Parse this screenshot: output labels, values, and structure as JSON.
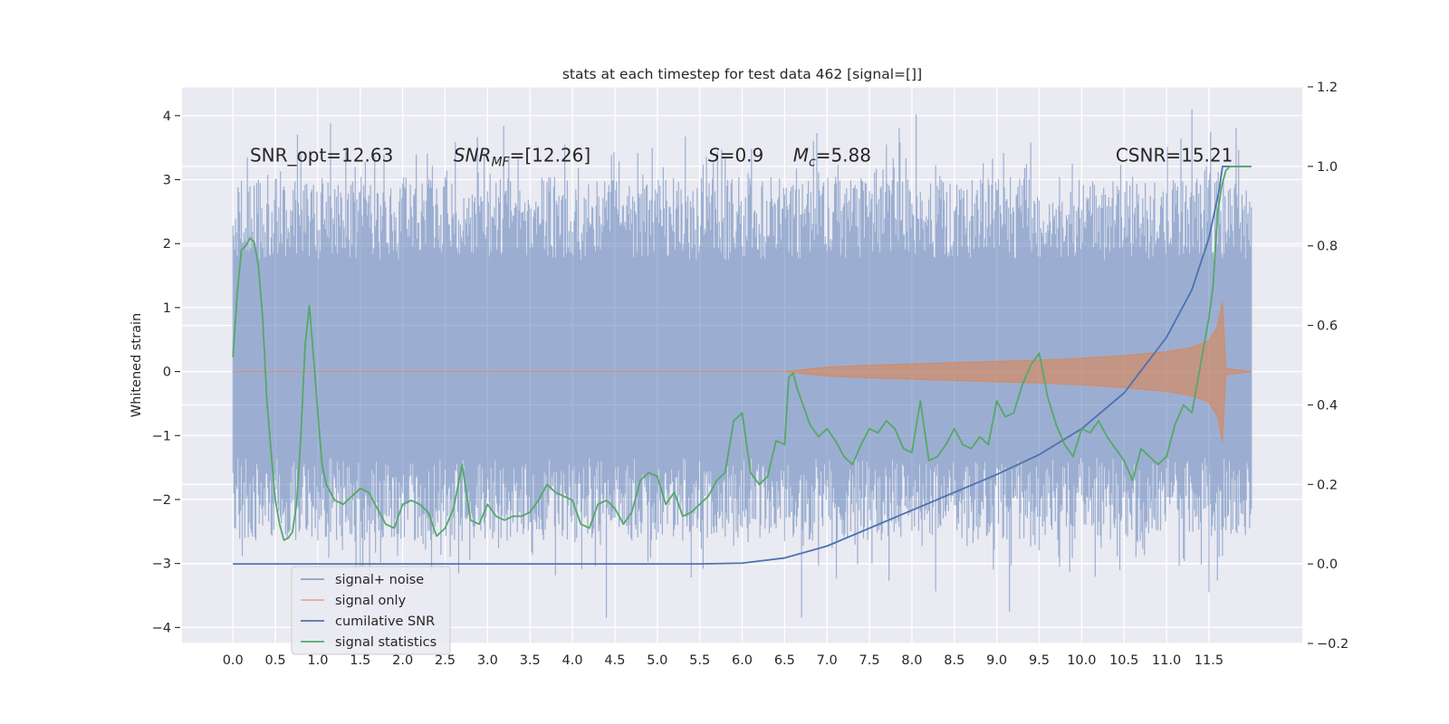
{
  "chart_data": {
    "type": "line",
    "title": "stats at each timestep for test data 462 [signal=[]]",
    "xlabel": "",
    "ylabel": "Whitened strain",
    "ylabel_right": "",
    "xlim": [
      -0.6,
      12.6
    ],
    "ylim": [
      -4.25,
      4.45
    ],
    "ylim_right": [
      -0.2,
      1.2
    ],
    "x_ticks": [
      0.0,
      0.5,
      1.0,
      1.5,
      2.0,
      2.5,
      3.0,
      3.5,
      4.0,
      4.5,
      5.0,
      5.5,
      6.0,
      6.5,
      7.0,
      7.5,
      8.0,
      8.5,
      9.0,
      9.5,
      10.0,
      10.5,
      11.0,
      11.5
    ],
    "x_tick_labels": [
      "0.0",
      "0.5",
      "1.0",
      "1.5",
      "2.0",
      "2.5",
      "3.0",
      "3.5",
      "4.0",
      "4.5",
      "5.0",
      "5.5",
      "6.0",
      "6.5",
      "7.0",
      "7.5",
      "8.0",
      "8.5",
      "9.0",
      "9.5",
      "10.0",
      "10.5",
      "11.0",
      "11.5"
    ],
    "y_ticks": [
      4,
      3,
      2,
      1,
      0,
      -1,
      -2,
      -3,
      -4
    ],
    "y_tick_labels": [
      "4",
      "3",
      "2",
      "1",
      "0",
      "−1",
      "−2",
      "−3",
      "−4"
    ],
    "y_right_ticks": [
      1.2,
      1.0,
      0.8,
      0.6,
      0.4,
      0.2,
      0.0,
      -0.2
    ],
    "y_right_tick_labels": [
      "1.2",
      "1.0",
      "0.8",
      "0.6",
      "0.4",
      "0.2",
      "0.0",
      "−0.2"
    ],
    "grid": true,
    "legend_position": "lower-left",
    "annotations": [
      {
        "x": 0.2,
        "y": 3.28,
        "segments": [
          {
            "text": "SNR_opt=12.63",
            "italic": false
          }
        ]
      },
      {
        "x": 2.6,
        "y": 3.28,
        "segments": [
          {
            "text": "SNR",
            "italic": true
          },
          {
            "text": "MF",
            "italic": true,
            "sub": true
          },
          {
            "text": "=[12.26]",
            "italic": false
          }
        ]
      },
      {
        "x": 5.6,
        "y": 3.28,
        "segments": [
          {
            "text": "S",
            "italic": true
          },
          {
            "text": "=0.9",
            "italic": false
          }
        ]
      },
      {
        "x": 6.6,
        "y": 3.28,
        "segments": [
          {
            "text": "M",
            "italic": true
          },
          {
            "text": "c",
            "italic": true,
            "sub": true
          },
          {
            "text": "=5.88",
            "italic": false
          }
        ]
      },
      {
        "x": 10.4,
        "y": 3.28,
        "segments": [
          {
            "text": "CSNR=15.21",
            "italic": false
          }
        ]
      }
    ],
    "series": [
      {
        "name": "signal+ noise",
        "axis": "left",
        "color": "#4c72b0",
        "opacity": 0.5,
        "x_start": 0.0,
        "x_end": 12.0,
        "typical_envelope": [
          -1.8,
          2.2
        ],
        "peaks": [
          [
            0.8,
            3.45
          ],
          [
            8.05,
            4.02
          ],
          [
            11.3,
            4.1
          ],
          [
            7.7,
            3.55
          ],
          [
            1.5,
            -3.55
          ],
          [
            4.4,
            -3.85
          ],
          [
            6.7,
            -3.85
          ],
          [
            9.15,
            -3.75
          ],
          [
            10.45,
            -3.1
          ]
        ]
      },
      {
        "name": "signal only",
        "axis": "left",
        "color": "#dd8452",
        "opacity": 0.6,
        "x": [
          0.0,
          6.5,
          7.0,
          7.5,
          8.0,
          8.5,
          9.0,
          9.5,
          10.0,
          10.5,
          11.0,
          11.3,
          11.5,
          11.6,
          11.66,
          11.7,
          12.0
        ],
        "envelope": [
          0.0,
          0.0,
          0.07,
          0.1,
          0.12,
          0.14,
          0.16,
          0.18,
          0.21,
          0.25,
          0.31,
          0.38,
          0.48,
          0.7,
          1.1,
          0.05,
          0.0
        ]
      },
      {
        "name": "cumilative SNR",
        "axis": "right",
        "color": "#4c72b0",
        "x": [
          0.0,
          5.5,
          6.0,
          6.5,
          7.0,
          7.5,
          8.0,
          8.5,
          9.0,
          9.5,
          10.0,
          10.5,
          11.0,
          11.3,
          11.5,
          11.62,
          11.66,
          12.0
        ],
        "y": [
          0.0,
          0.0,
          0.002,
          0.015,
          0.045,
          0.09,
          0.135,
          0.18,
          0.225,
          0.275,
          0.34,
          0.43,
          0.57,
          0.69,
          0.82,
          0.94,
          1.0,
          1.0
        ]
      },
      {
        "name": "signal statistics",
        "axis": "right",
        "color": "#55a868",
        "x": [
          0.0,
          0.05,
          0.1,
          0.15,
          0.2,
          0.25,
          0.3,
          0.35,
          0.4,
          0.45,
          0.5,
          0.55,
          0.6,
          0.65,
          0.7,
          0.75,
          0.8,
          0.85,
          0.9,
          0.95,
          1.0,
          1.05,
          1.1,
          1.15,
          1.2,
          1.3,
          1.4,
          1.5,
          1.6,
          1.7,
          1.8,
          1.9,
          2.0,
          2.1,
          2.2,
          2.3,
          2.4,
          2.5,
          2.6,
          2.7,
          2.8,
          2.9,
          3.0,
          3.1,
          3.2,
          3.3,
          3.4,
          3.5,
          3.6,
          3.7,
          3.8,
          3.9,
          4.0,
          4.1,
          4.2,
          4.3,
          4.4,
          4.5,
          4.6,
          4.7,
          4.8,
          4.9,
          5.0,
          5.1,
          5.2,
          5.3,
          5.4,
          5.5,
          5.6,
          5.7,
          5.8,
          5.9,
          6.0,
          6.1,
          6.2,
          6.3,
          6.4,
          6.5,
          6.55,
          6.6,
          6.65,
          6.7,
          6.8,
          6.9,
          7.0,
          7.1,
          7.2,
          7.3,
          7.4,
          7.5,
          7.6,
          7.7,
          7.8,
          7.9,
          8.0,
          8.1,
          8.2,
          8.3,
          8.4,
          8.5,
          8.6,
          8.7,
          8.8,
          8.9,
          9.0,
          9.1,
          9.2,
          9.3,
          9.4,
          9.5,
          9.6,
          9.7,
          9.8,
          9.9,
          10.0,
          10.1,
          10.2,
          10.3,
          10.4,
          10.5,
          10.6,
          10.7,
          10.8,
          10.9,
          11.0,
          11.1,
          11.2,
          11.3,
          11.4,
          11.5,
          11.55,
          11.6,
          11.65,
          11.7,
          11.75,
          11.8,
          11.85,
          11.9,
          12.0
        ],
        "y": [
          0.52,
          0.68,
          0.79,
          0.8,
          0.82,
          0.81,
          0.75,
          0.62,
          0.41,
          0.28,
          0.16,
          0.1,
          0.06,
          0.065,
          0.08,
          0.15,
          0.32,
          0.55,
          0.65,
          0.52,
          0.38,
          0.25,
          0.2,
          0.18,
          0.16,
          0.15,
          0.17,
          0.19,
          0.18,
          0.14,
          0.1,
          0.09,
          0.15,
          0.16,
          0.15,
          0.13,
          0.07,
          0.09,
          0.14,
          0.25,
          0.11,
          0.1,
          0.15,
          0.12,
          0.11,
          0.12,
          0.12,
          0.13,
          0.16,
          0.2,
          0.18,
          0.17,
          0.16,
          0.1,
          0.09,
          0.15,
          0.16,
          0.14,
          0.1,
          0.13,
          0.21,
          0.23,
          0.22,
          0.15,
          0.18,
          0.12,
          0.13,
          0.15,
          0.17,
          0.21,
          0.23,
          0.36,
          0.38,
          0.23,
          0.2,
          0.22,
          0.31,
          0.3,
          0.47,
          0.48,
          0.44,
          0.41,
          0.35,
          0.32,
          0.34,
          0.31,
          0.27,
          0.25,
          0.3,
          0.34,
          0.33,
          0.36,
          0.34,
          0.29,
          0.28,
          0.41,
          0.26,
          0.27,
          0.3,
          0.34,
          0.3,
          0.29,
          0.32,
          0.3,
          0.41,
          0.37,
          0.38,
          0.45,
          0.5,
          0.53,
          0.42,
          0.35,
          0.3,
          0.27,
          0.34,
          0.33,
          0.36,
          0.32,
          0.29,
          0.26,
          0.21,
          0.29,
          0.27,
          0.25,
          0.27,
          0.35,
          0.4,
          0.38,
          0.5,
          0.62,
          0.7,
          0.88,
          0.95,
          0.99,
          1.0,
          1.0,
          1.0,
          1.0,
          1.0
        ]
      }
    ]
  }
}
